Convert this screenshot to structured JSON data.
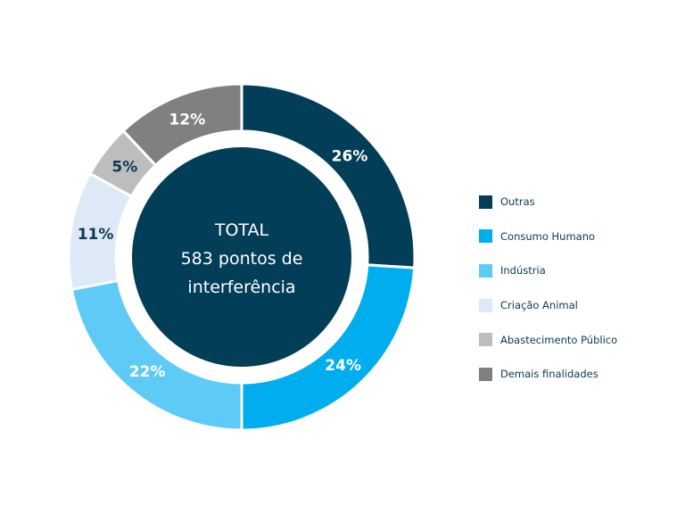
{
  "chart_data": {
    "type": "pie",
    "donut": true,
    "center_text": [
      "TOTAL",
      "583 pontos de",
      "interferência"
    ],
    "categories": [
      "Outras",
      "Consumo Humano",
      "Indústria",
      "Criação Animal",
      "Abastecimento Público",
      "Demais finalidades"
    ],
    "values": [
      26,
      24,
      22,
      11,
      5,
      12
    ],
    "labels": [
      "26%",
      "24%",
      "22%",
      "11%",
      "5%",
      "12%"
    ],
    "colors": [
      "#023e57",
      "#00aeef",
      "#5ecbf6",
      "#dde9f6",
      "#bdbdbd",
      "#808080"
    ],
    "label_colors": [
      "#ffffff",
      "#ffffff",
      "#ffffff",
      "#0b3a52",
      "#0b3a52",
      "#ffffff"
    ],
    "center_color": "#023e57",
    "legend": "right"
  }
}
